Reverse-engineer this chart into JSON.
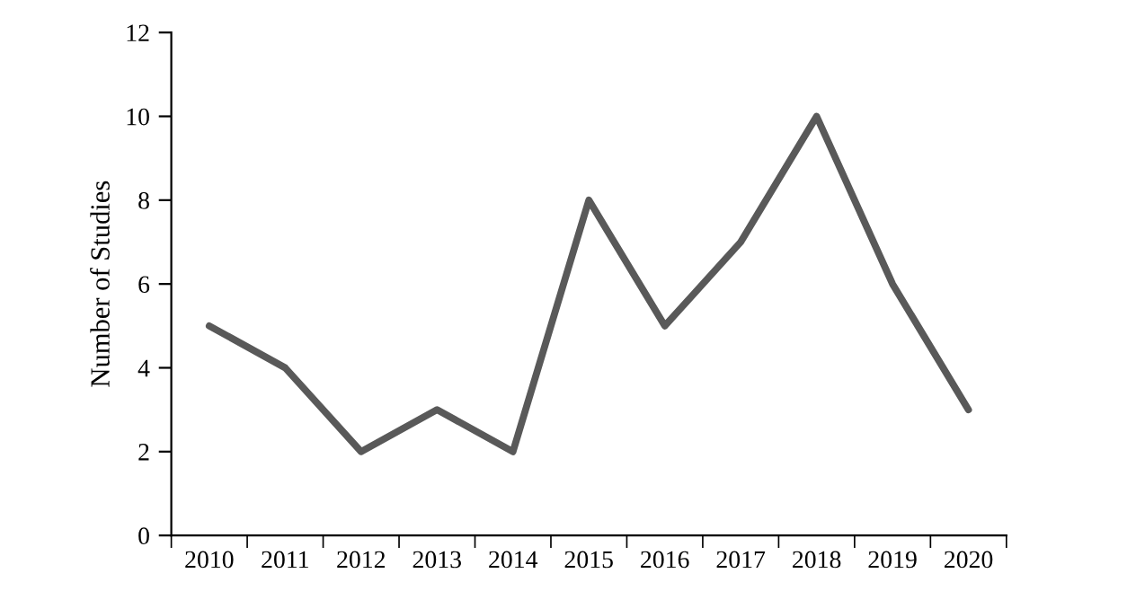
{
  "chart_data": {
    "type": "line",
    "ylabel": "Number of Studies",
    "categories": [
      "2010",
      "2011",
      "2012",
      "2013",
      "2014",
      "2015",
      "2016",
      "2017",
      "2018",
      "2019",
      "2020"
    ],
    "series": [
      {
        "color": "#595959",
        "values": [
          5,
          4,
          2,
          3,
          2,
          8,
          5,
          7,
          10,
          6,
          3
        ]
      }
    ],
    "ylim": [
      0,
      12
    ],
    "yticks": [
      0,
      2,
      4,
      6,
      8,
      10,
      12
    ],
    "grid": false,
    "marker": "none",
    "line_style": "solid"
  }
}
